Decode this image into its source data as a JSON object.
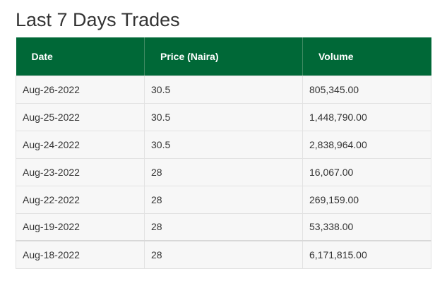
{
  "title": "Last 7 Days Trades",
  "table": {
    "headers": [
      "Date",
      "Price (Naira)",
      "Volume"
    ],
    "rows": [
      [
        "Aug-26-2022",
        "30.5",
        "805,345.00"
      ],
      [
        "Aug-25-2022",
        "30.5",
        "1,448,790.00"
      ],
      [
        "Aug-24-2022",
        "30.5",
        "2,838,964.00"
      ],
      [
        "Aug-23-2022",
        "28",
        "16,067.00"
      ],
      [
        "Aug-22-2022",
        "28",
        "269,159.00"
      ],
      [
        "Aug-19-2022",
        "28",
        "53,338.00"
      ],
      [
        "Aug-18-2022",
        "28",
        "6,171,815.00"
      ]
    ]
  },
  "colors": {
    "header_bg": "#006837",
    "header_text": "#ffffff",
    "row_bg": "#f7f7f7",
    "text": "#333333"
  }
}
